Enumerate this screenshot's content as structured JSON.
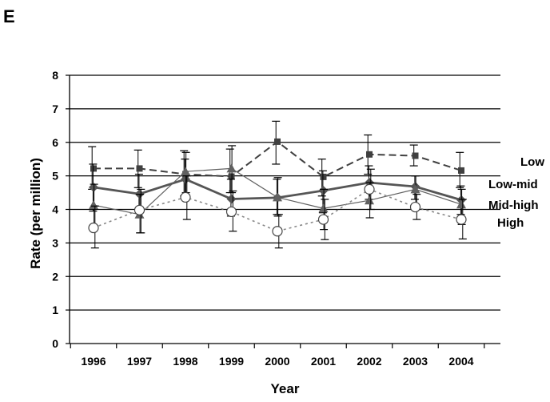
{
  "panel_label": "E",
  "chart_data": {
    "type": "line",
    "title": "",
    "xlabel": "Year",
    "ylabel": "Rate (per million)",
    "categories": [
      "1996",
      "1997",
      "1998",
      "1999",
      "2000",
      "2001",
      "2002",
      "2003",
      "2004"
    ],
    "ylim": [
      0,
      8
    ],
    "yticks": [
      "0",
      "1",
      "2",
      "3",
      "4",
      "5",
      "6",
      "7",
      "8"
    ],
    "grid": "horizontal",
    "legend_placement": "right (labels placed beside line ends)",
    "series": [
      {
        "name": "Low",
        "style": "dashed",
        "marker": "square",
        "color": "#404040",
        "values": [
          5.22,
          5.22,
          5.05,
          4.98,
          6.02,
          4.97,
          5.64,
          5.6,
          5.16
        ],
        "err_low": [
          4.6,
          4.65,
          4.4,
          4.5,
          5.35,
          4.4,
          5.05,
          5.3,
          4.65
        ],
        "err_high": [
          5.87,
          5.77,
          5.75,
          5.8,
          6.63,
          5.5,
          6.22,
          5.92,
          5.7
        ]
      },
      {
        "name": "Low-mid",
        "style": "solid-thick",
        "marker": "diamond",
        "color": "#555555",
        "values": [
          4.66,
          4.46,
          4.9,
          4.31,
          4.35,
          4.56,
          4.8,
          4.68,
          4.28
        ],
        "err_low": [
          3.95,
          3.9,
          4.35,
          3.8,
          3.85,
          3.9,
          4.3,
          4.3,
          3.85
        ],
        "err_high": [
          5.35,
          5.05,
          5.5,
          4.9,
          4.9,
          5.15,
          5.3,
          5.0,
          4.7
        ]
      },
      {
        "name": "Mid-high",
        "style": "solid-thin",
        "marker": "triangle",
        "color": "#606060",
        "values": [
          4.13,
          3.85,
          5.13,
          5.22,
          4.36,
          4.03,
          4.27,
          4.6,
          4.15
        ],
        "err_low": [
          3.5,
          3.3,
          4.5,
          4.5,
          3.8,
          3.4,
          3.75,
          4.1,
          3.55
        ],
        "err_high": [
          4.75,
          4.45,
          5.7,
          5.9,
          4.95,
          4.6,
          4.8,
          5.0,
          4.6
        ]
      },
      {
        "name": "High",
        "style": "dotted",
        "marker": "circle-open",
        "color": "#888888",
        "values": [
          3.45,
          3.98,
          4.36,
          3.93,
          3.35,
          3.7,
          4.6,
          4.07,
          3.7
        ],
        "err_low": [
          2.85,
          3.3,
          3.7,
          3.35,
          2.85,
          3.1,
          4.0,
          3.7,
          3.12
        ],
        "err_high": [
          4.1,
          4.6,
          5.0,
          4.55,
          3.85,
          4.3,
          5.2,
          4.45,
          4.3
        ]
      }
    ]
  }
}
